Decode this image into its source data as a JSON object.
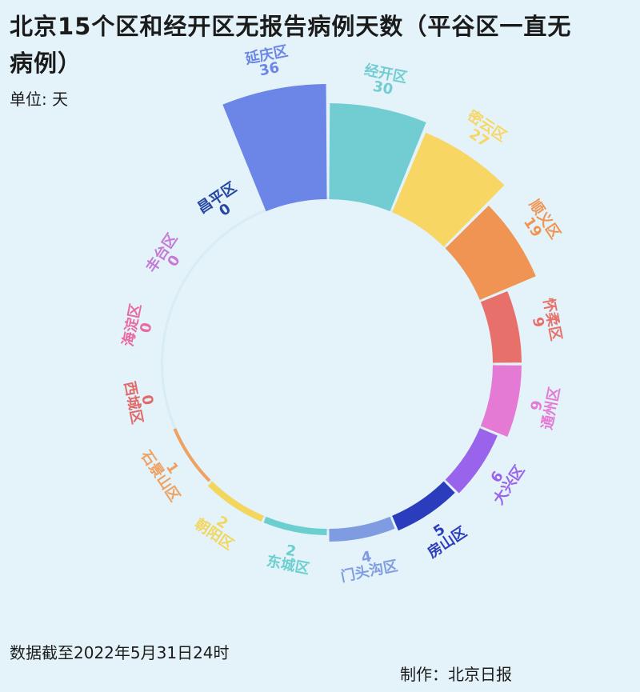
{
  "header": {
    "title": "北京15个区和经开区无报告病例天数（平谷区一直无病例）",
    "unit": "单位: 天"
  },
  "footer": {
    "note": "数据截至2022年5月31日24时",
    "credit": "制作：北京日报"
  },
  "chart_data": {
    "type": "radial-bar",
    "title": "北京15个区和经开区无报告病例天数（平谷区一直无病例）",
    "unit": "天",
    "categories": [
      "延庆区",
      "经开区",
      "密云区",
      "顺义区",
      "怀柔区",
      "通州区",
      "大兴区",
      "房山区",
      "门头沟区",
      "东城区",
      "朝阳区",
      "石景山区",
      "西城区",
      "海淀区",
      "丰台区",
      "昌平区"
    ],
    "values": [
      36,
      30,
      27,
      19,
      9,
      9,
      6,
      5,
      4,
      2,
      2,
      1,
      0,
      0,
      0,
      0
    ],
    "colors": [
      "#6b86e6",
      "#72cdd3",
      "#f7d664",
      "#ef9452",
      "#e8706a",
      "#e57ad4",
      "#9a63ec",
      "#2b3cbd",
      "#7f9ce3",
      "#6ccfcf",
      "#f2d65e",
      "#eea162",
      "#e06a6a",
      "#e86aa0",
      "#c47ad6",
      "#2546a3"
    ]
  }
}
